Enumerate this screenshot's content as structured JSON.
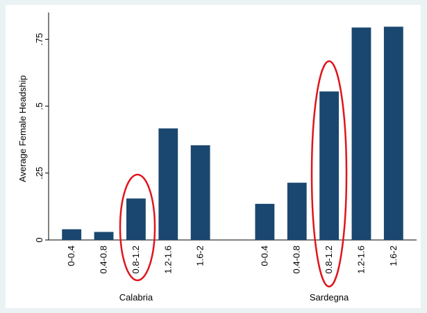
{
  "chart_data": {
    "type": "bar",
    "ylabel": "Average Female Headship",
    "color": "#1a476f",
    "ylim": [
      0,
      0.85
    ],
    "yticks": [
      0,
      {
        "value": 0.25,
        "label": ".25"
      },
      {
        "value": 0.5,
        "label": ".5"
      },
      {
        "value": 0.75,
        "label": ".75"
      }
    ],
    "groups": [
      {
        "name": "Calabria",
        "categories": [
          "0-0.4",
          "0.4-0.8",
          "0.8-1.2",
          "1.2-1.6",
          "1.6-2"
        ],
        "values": [
          0.04,
          0.03,
          0.155,
          0.417,
          0.354
        ]
      },
      {
        "name": "Sardegna",
        "categories": [
          "0-0.4",
          "0.4-0.8",
          "0.8-1.2",
          "1.2-1.6",
          "1.6-2"
        ],
        "values": [
          0.135,
          0.214,
          0.555,
          0.794,
          0.797
        ]
      }
    ]
  }
}
